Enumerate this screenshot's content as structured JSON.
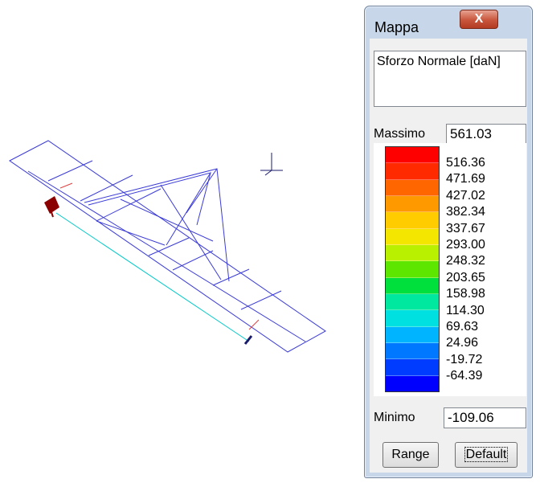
{
  "window": {
    "title": "Mappa",
    "close_glyph": "X"
  },
  "quantity": "Sforzo Normale [daN]",
  "max": {
    "label": "Massimo",
    "value": "561.03"
  },
  "min": {
    "label": "Minimo",
    "value": "-109.06"
  },
  "legend": {
    "colors": [
      "#ff0000",
      "#ff2a00",
      "#ff6600",
      "#ff9900",
      "#ffcc00",
      "#f5e600",
      "#b8f000",
      "#5ce600",
      "#00e03c",
      "#00e8a0",
      "#00e0e0",
      "#00b4ff",
      "#0078ff",
      "#003cff",
      "#0000ff"
    ],
    "values": [
      "516.36",
      "471.69",
      "427.02",
      "382.34",
      "337.67",
      "293.00",
      "248.32",
      "203.65",
      "158.98",
      "114.30",
      "69.63",
      "24.96",
      "-19.72",
      "-64.39"
    ]
  },
  "buttons": {
    "range": "Range",
    "default": "Default"
  },
  "viewport": {
    "line_color": "#3b3bd6",
    "axis_color": "#00c8c8",
    "support_color": "#8b0000"
  }
}
